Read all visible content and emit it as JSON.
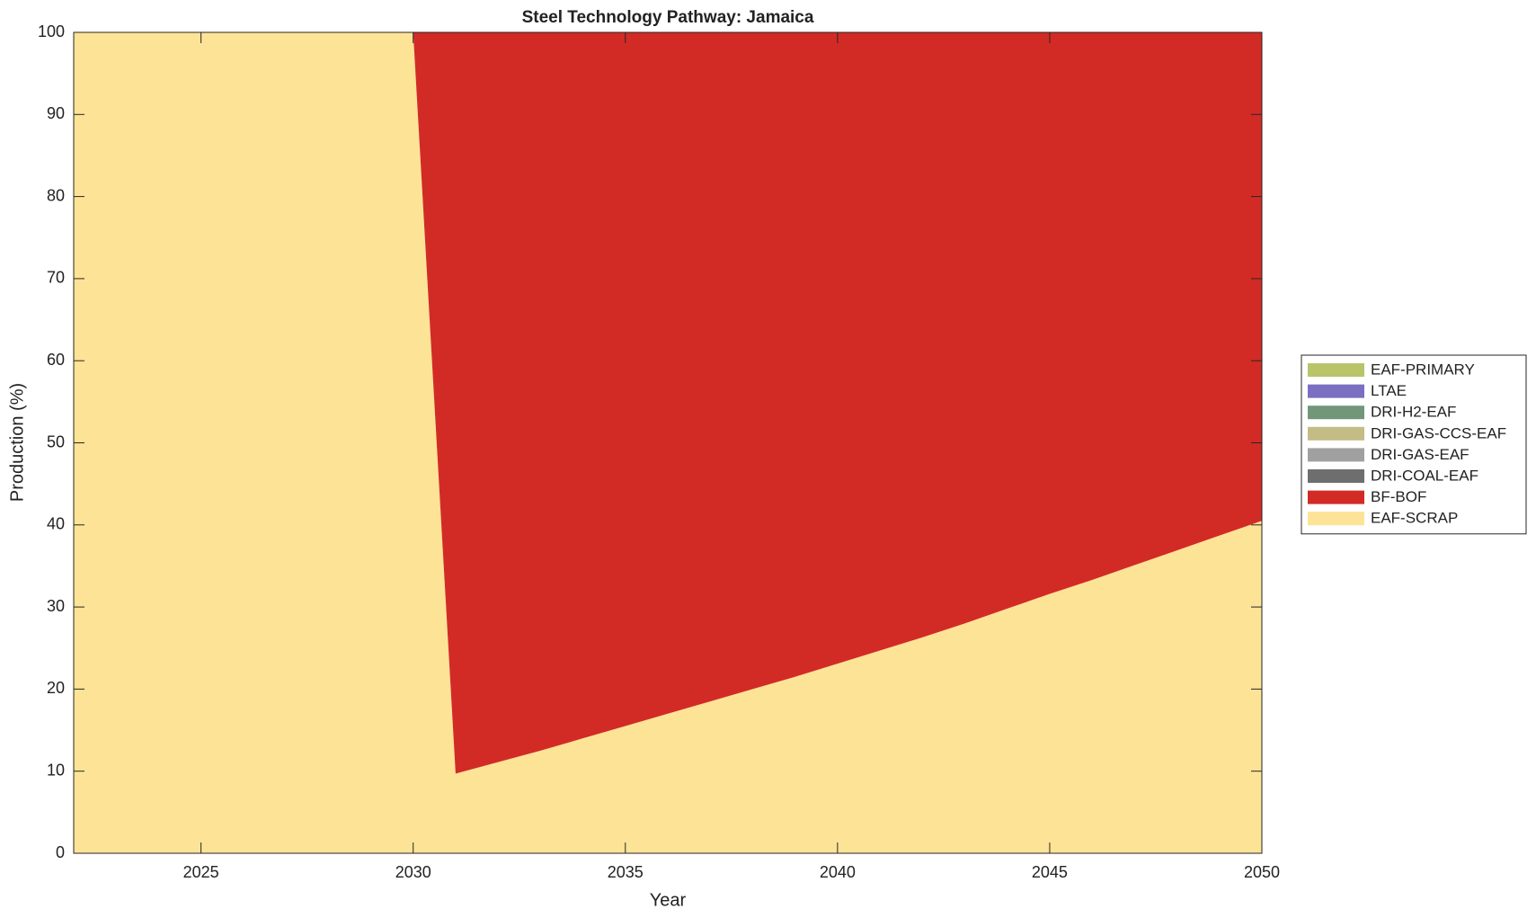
{
  "chart_data": {
    "type": "stacked_area",
    "title": "Steel Technology Pathway: Jamaica",
    "xlabel": "Year",
    "ylabel": "Production (%)",
    "x": [
      2022,
      2023,
      2024,
      2025,
      2026,
      2027,
      2028,
      2029,
      2030,
      2031,
      2032,
      2033,
      2034,
      2035,
      2036,
      2037,
      2038,
      2039,
      2040,
      2041,
      2042,
      2043,
      2044,
      2045,
      2046,
      2047,
      2048,
      2049,
      2050
    ],
    "series": [
      {
        "name": "EAF-PRIMARY",
        "color": "#b9c36a",
        "values": [
          0,
          0,
          0,
          0,
          0,
          0,
          0,
          0,
          0,
          0,
          0,
          0,
          0,
          0,
          0,
          0,
          0,
          0,
          0,
          0,
          0,
          0,
          0,
          0,
          0,
          0,
          0,
          0,
          0
        ]
      },
      {
        "name": "LTAE",
        "color": "#7a6fc0",
        "values": [
          0,
          0,
          0,
          0,
          0,
          0,
          0,
          0,
          0,
          0,
          0,
          0,
          0,
          0,
          0,
          0,
          0,
          0,
          0,
          0,
          0,
          0,
          0,
          0,
          0,
          0,
          0,
          0,
          0
        ]
      },
      {
        "name": "DRI-H2-EAF",
        "color": "#72967a",
        "values": [
          0,
          0,
          0,
          0,
          0,
          0,
          0,
          0,
          0,
          0,
          0,
          0,
          0,
          0,
          0,
          0,
          0,
          0,
          0,
          0,
          0,
          0,
          0,
          0,
          0,
          0,
          0,
          0,
          0
        ]
      },
      {
        "name": "DRI-GAS-CCS-EAF",
        "color": "#c3bc85",
        "values": [
          0,
          0,
          0,
          0,
          0,
          0,
          0,
          0,
          0,
          0,
          0,
          0,
          0,
          0,
          0,
          0,
          0,
          0,
          0,
          0,
          0,
          0,
          0,
          0,
          0,
          0,
          0,
          0,
          0
        ]
      },
      {
        "name": "DRI-GAS-EAF",
        "color": "#a0a0a0",
        "values": [
          0,
          0,
          0,
          0,
          0,
          0,
          0,
          0,
          0,
          0,
          0,
          0,
          0,
          0,
          0,
          0,
          0,
          0,
          0,
          0,
          0,
          0,
          0,
          0,
          0,
          0,
          0,
          0,
          0
        ]
      },
      {
        "name": "DRI-COAL-EAF",
        "color": "#6e6e6e",
        "values": [
          0,
          0,
          0,
          0,
          0,
          0,
          0,
          0,
          0,
          0,
          0,
          0,
          0,
          0,
          0,
          0,
          0,
          0,
          0,
          0,
          0,
          0,
          0,
          0,
          0,
          0,
          0,
          0,
          0
        ]
      },
      {
        "name": "BF-BOF",
        "color": "#d22b25",
        "values": [
          0,
          0,
          0,
          0,
          0,
          0,
          0,
          0,
          0,
          90.3,
          88.9,
          87.5,
          86.0,
          84.5,
          83.0,
          81.5,
          80.0,
          78.5,
          76.9,
          75.3,
          73.7,
          72.0,
          70.2,
          68.4,
          66.7,
          64.9,
          63.1,
          61.3,
          59.5
        ]
      },
      {
        "name": "EAF-SCRAP",
        "color": "#fde396",
        "values": [
          100,
          100,
          100,
          100,
          100,
          100,
          100,
          100,
          100,
          9.7,
          11.1,
          12.5,
          14.0,
          15.5,
          17.0,
          18.5,
          20.0,
          21.5,
          23.1,
          24.7,
          26.3,
          28.0,
          29.8,
          31.6,
          33.3,
          35.1,
          36.9,
          38.7,
          40.5
        ]
      }
    ],
    "xlim": [
      2022,
      2050
    ],
    "xticks": [
      2025,
      2030,
      2035,
      2040,
      2045,
      2050
    ],
    "ylim": [
      0,
      100
    ],
    "yticks": [
      0,
      10,
      20,
      30,
      40,
      50,
      60,
      70,
      80,
      90,
      100
    ],
    "grid": false,
    "legend": "outside right"
  }
}
